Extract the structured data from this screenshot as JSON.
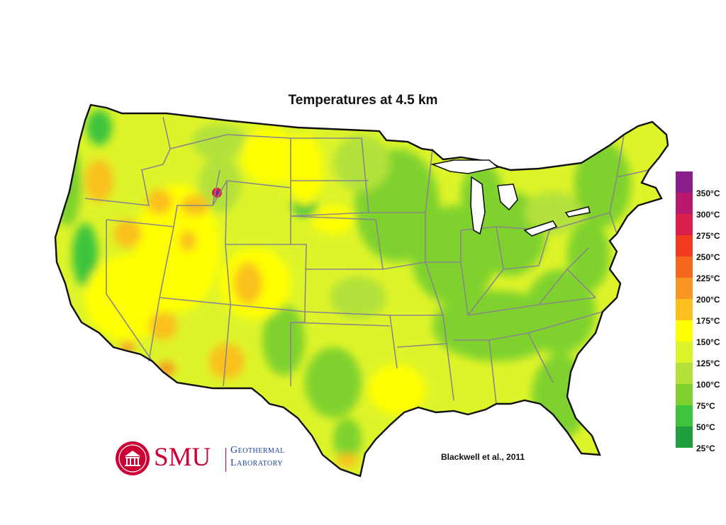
{
  "title": "Temperatures at 4.5 km",
  "credit": "Blackwell et al., 2011",
  "logo": {
    "brand": "SMU",
    "line1": "Geothermal",
    "line2": "Laboratory"
  },
  "legend": {
    "items": [
      {
        "label": "350°C",
        "color": "#8b1c8b"
      },
      {
        "label": "300°C",
        "color": "#b8186e"
      },
      {
        "label": "275°C",
        "color": "#d91f4a"
      },
      {
        "label": "250°C",
        "color": "#f23a1c"
      },
      {
        "label": "225°C",
        "color": "#f2661e"
      },
      {
        "label": "200°C",
        "color": "#f79622"
      },
      {
        "label": "175°C",
        "color": "#fac01f"
      },
      {
        "label": "150°C",
        "color": "#ffff00"
      },
      {
        "label": "125°C",
        "color": "#def42a"
      },
      {
        "label": "100°C",
        "color": "#b3e13a"
      },
      {
        "label": "75°C",
        "color": "#7fd22e"
      },
      {
        "label": "50°C",
        "color": "#3cc43c"
      },
      {
        "label": "25°C",
        "color": "#1f9e3f"
      }
    ]
  },
  "colors": {
    "state_border": "#888888",
    "outline": "#111111",
    "logo_red": "#cc0035",
    "logo_blue": "#1a3fa0"
  }
}
